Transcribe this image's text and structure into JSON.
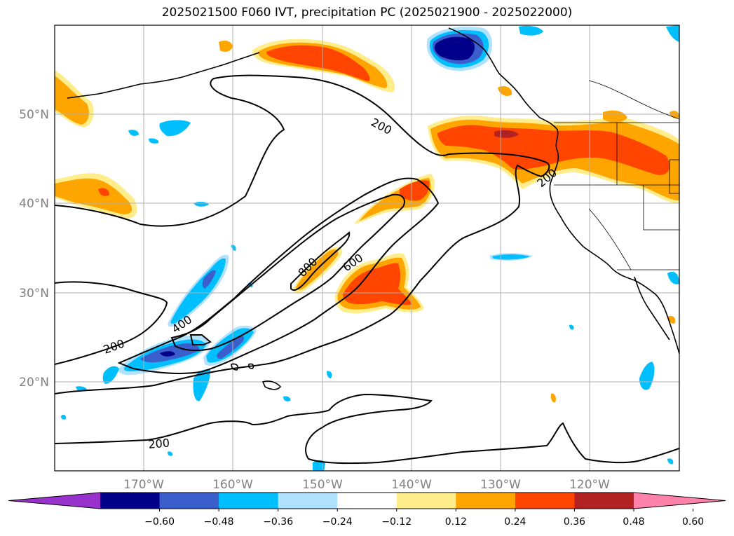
{
  "title": "2025021500 F060 IVT, precipitation PC (2025021900 - 2025022000)",
  "lat_labels": [
    "50°N",
    "40°N",
    "30°N",
    "20°N"
  ],
  "lon_labels": [
    "170°W",
    "160°W",
    "150°W",
    "140°W",
    "130°W",
    "120°W"
  ],
  "contour_labels": [
    "200",
    "200",
    "200",
    "200",
    "400",
    "600",
    "800"
  ],
  "colorbar": {
    "ticks": [
      "−0.60",
      "−0.48",
      "−0.36",
      "−0.24",
      "−0.12",
      "0.12",
      "0.24",
      "0.36",
      "0.48",
      "0.60"
    ],
    "colors": [
      "#9932cc",
      "#00008b",
      "#3a5fcd",
      "#00bfff",
      "#b0e2ff",
      "#ffffff",
      "#ffec8b",
      "#ffa500",
      "#ff4500",
      "#b22222",
      "#ff82ab"
    ]
  }
}
